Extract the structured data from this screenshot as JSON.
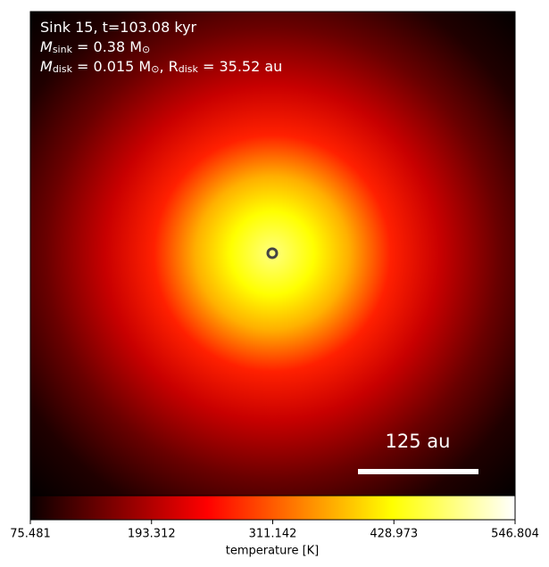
{
  "chart_data": {
    "type": "heatmap",
    "colormap": "hot",
    "info_lines": [
      [
        {
          "t": "Sink 15, t=103.08 kyr"
        }
      ],
      [
        {
          "t": "M"
        },
        {
          "sub": "sink"
        },
        {
          "t": " = 0.38 M"
        },
        {
          "sub": "⊙"
        }
      ],
      [
        {
          "t": "M"
        },
        {
          "sub": "disk"
        },
        {
          "t": " = 0.015 M"
        },
        {
          "sub": "⊙"
        },
        {
          "t": ", R"
        },
        {
          "sub": "disk"
        },
        {
          "t": " = 35.52 au"
        }
      ]
    ],
    "scale_bar_label": "125 au",
    "colorbar_label": "temperature [K]",
    "clim": [
      75.481,
      546.804
    ],
    "cticks": [
      75.481,
      193.312,
      311.142,
      428.973,
      546.804
    ]
  }
}
